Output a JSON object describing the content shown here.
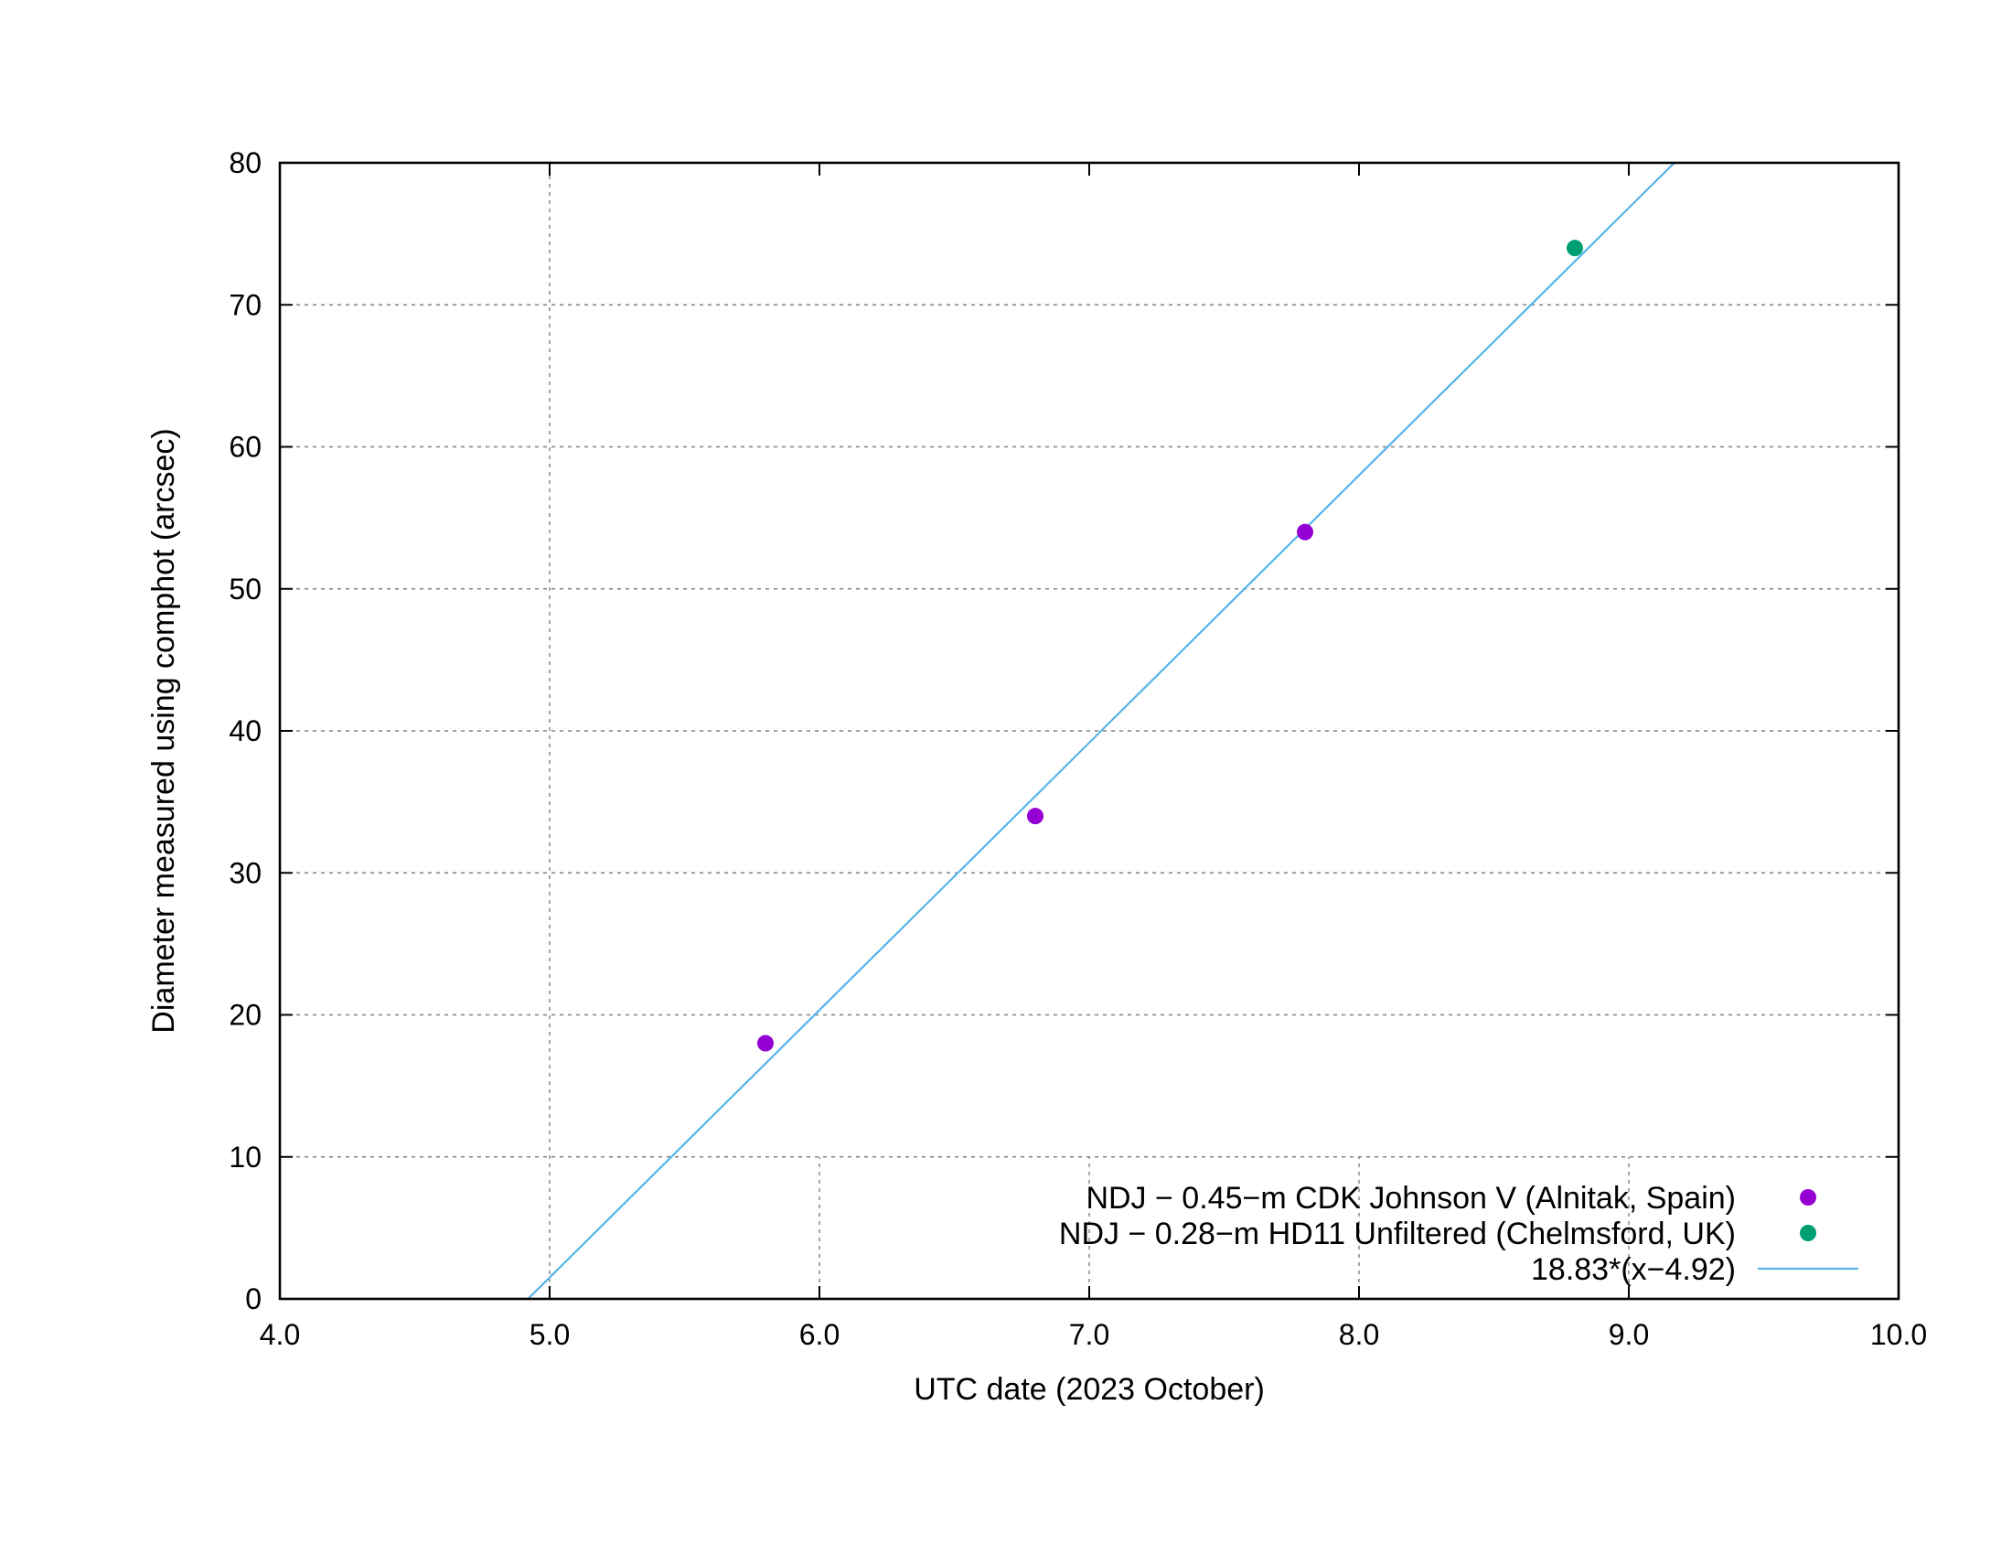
{
  "chart_data": {
    "type": "scatter",
    "xlabel": "UTC date (2023 October)",
    "ylabel": "Diameter measured using comphot (arcsec)",
    "xlim": [
      4.0,
      10.0
    ],
    "ylim": [
      0,
      80
    ],
    "x_ticks": [
      4.0,
      5.0,
      6.0,
      7.0,
      8.0,
      9.0,
      10.0
    ],
    "x_tick_labels": [
      "4.0",
      "5.0",
      "6.0",
      "7.0",
      "8.0",
      "9.0",
      "10.0"
    ],
    "y_ticks": [
      0,
      10,
      20,
      30,
      40,
      50,
      60,
      70,
      80
    ],
    "y_tick_labels": [
      "0",
      "10",
      "20",
      "30",
      "40",
      "50",
      "60",
      "70",
      "80"
    ],
    "grid": true,
    "legend_position": "bottom-right",
    "series": [
      {
        "name": "NDJ − 0.45−m CDK Johnson V (Alnitak, Spain)",
        "kind": "points",
        "color": "#9400d3",
        "points": [
          {
            "x": 5.8,
            "y": 18
          },
          {
            "x": 6.8,
            "y": 34
          },
          {
            "x": 7.8,
            "y": 54
          }
        ]
      },
      {
        "name": "NDJ − 0.28−m HD11 Unfiltered (Chelmsford, UK)",
        "kind": "points",
        "color": "#009e73",
        "points": [
          {
            "x": 8.8,
            "y": 74
          }
        ]
      },
      {
        "name": "18.83*(x−4.92)",
        "kind": "line",
        "color": "#56b4e9",
        "slope": 18.83,
        "x0": 4.92
      }
    ]
  }
}
